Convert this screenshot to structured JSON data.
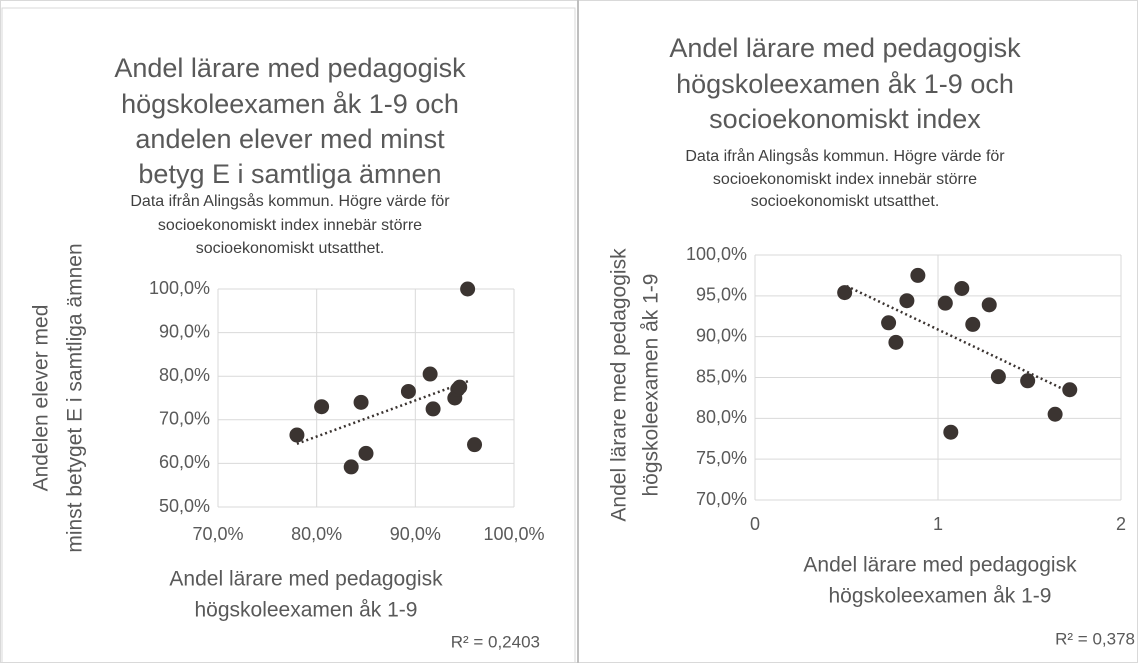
{
  "chart_data": [
    {
      "type": "scatter",
      "title": [
        "Andel lärare med pedagogisk",
        "högskoleexamen åk 1-9 och",
        "andelen elever med minst",
        "betyg E i samtliga ämnen"
      ],
      "subtitle": [
        "Data ifrån Alingsås kommun. Högre värde för",
        "socioekonomiskt index innebär större",
        "socioekonomiskt utsatthet."
      ],
      "y_label": [
        "Andelen elever med",
        "minst betyget E i samtliga ämnen"
      ],
      "x_label": [
        "Andel lärare med pedagogisk",
        "högskoleexamen åk 1-9"
      ],
      "annotation": "R² = 0,2403",
      "x": [
        78.0,
        80.5,
        84.5,
        83.5,
        85.0,
        89.3,
        91.5,
        91.8,
        94.0,
        94.3,
        94.5,
        95.3,
        96.0
      ],
      "values": [
        66.5,
        73.0,
        74.0,
        59.2,
        62.3,
        76.5,
        80.5,
        72.5,
        75.0,
        77.0,
        77.5,
        100.0,
        64.3
      ],
      "color": "#3b3431",
      "trendline": {
        "x": [
          78.0,
          95.5
        ],
        "values": [
          64.5,
          79.0
        ]
      },
      "xlim": [
        70,
        100
      ],
      "xticks": [
        {
          "value": 70,
          "label": "70,0%"
        },
        {
          "value": 80,
          "label": "80,0%"
        },
        {
          "value": 90,
          "label": "90,0%"
        },
        {
          "value": 100,
          "label": "100,0%"
        }
      ],
      "ylim": [
        50,
        100
      ],
      "yticks": [
        {
          "value": 50,
          "label": "50,0%"
        },
        {
          "value": 60,
          "label": "60,0%"
        },
        {
          "value": 70,
          "label": "70,0%"
        },
        {
          "value": 80,
          "label": "80,0%"
        },
        {
          "value": 90,
          "label": "90,0%"
        },
        {
          "value": 100,
          "label": "100,0%"
        }
      ],
      "grid": true
    },
    {
      "type": "scatter",
      "title": [
        "Andel lärare med pedagogisk",
        "högskoleexamen åk 1-9 och",
        "socioekonomiskt index"
      ],
      "subtitle": [
        "Data ifrån Alingsås kommun. Högre värde för",
        "socioekonomiskt index innebär större",
        "socioekonomiskt utsatthet."
      ],
      "y_label": [
        "Andel lärare med pedagogisk",
        "högskoleexamen åk 1-9"
      ],
      "x_label": [
        "Andel lärare med pedagogisk",
        "högskoleexamen åk 1-9"
      ],
      "annotation": "R² = 0,378",
      "x": [
        0.49,
        0.89,
        0.83,
        0.73,
        0.77,
        1.04,
        1.13,
        1.19,
        1.28,
        1.33,
        1.49,
        1.07,
        1.64,
        1.72
      ],
      "values": [
        95.4,
        97.5,
        94.4,
        91.7,
        89.3,
        94.1,
        95.9,
        91.5,
        93.9,
        85.1,
        84.6,
        78.3,
        80.5,
        83.5
      ],
      "color": "#3b3431",
      "trendline": {
        "x": [
          0.5,
          1.72
        ],
        "values": [
          96.2,
          83.2
        ]
      },
      "xlim": [
        0,
        2
      ],
      "xticks": [
        0,
        1,
        2
      ],
      "ylim": [
        70,
        100
      ],
      "yticks": [
        {
          "value": 70,
          "label": "70,0%"
        },
        {
          "value": 75,
          "label": "75,0%"
        },
        {
          "value": 80,
          "label": "80,0%"
        },
        {
          "value": 85,
          "label": "85,0%"
        },
        {
          "value": 90,
          "label": "90,0%"
        },
        {
          "value": 95,
          "label": "95,0%"
        },
        {
          "value": 100,
          "label": "100,0%"
        }
      ],
      "grid": true
    }
  ]
}
